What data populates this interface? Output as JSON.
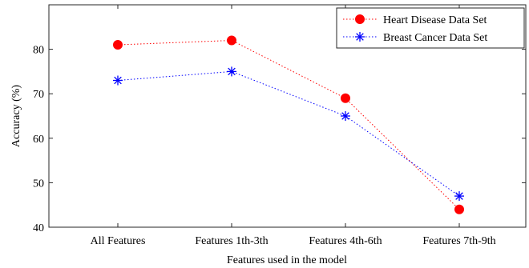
{
  "chart_data": {
    "type": "line",
    "categories": [
      "All Features",
      "Features 1th-3th",
      "Features 4th-6th",
      "Features 7th-9th"
    ],
    "series": [
      {
        "name": "Heart Disease Data Set",
        "values": [
          81,
          82,
          69,
          44
        ],
        "color": "#ff0000",
        "marker": "filled-circle",
        "line_style": "dotted"
      },
      {
        "name": "Breast Cancer Data Set",
        "values": [
          73,
          75,
          65,
          47
        ],
        "color": "#0000ff",
        "marker": "asterisk",
        "line_style": "dotted"
      }
    ],
    "title": "",
    "xlabel": "Features used in the model",
    "ylabel": "Accuracy (%)",
    "ylim": [
      40,
      90
    ],
    "yticks": [
      40,
      50,
      60,
      70,
      80
    ],
    "grid": false,
    "legend_position": "top-right"
  }
}
